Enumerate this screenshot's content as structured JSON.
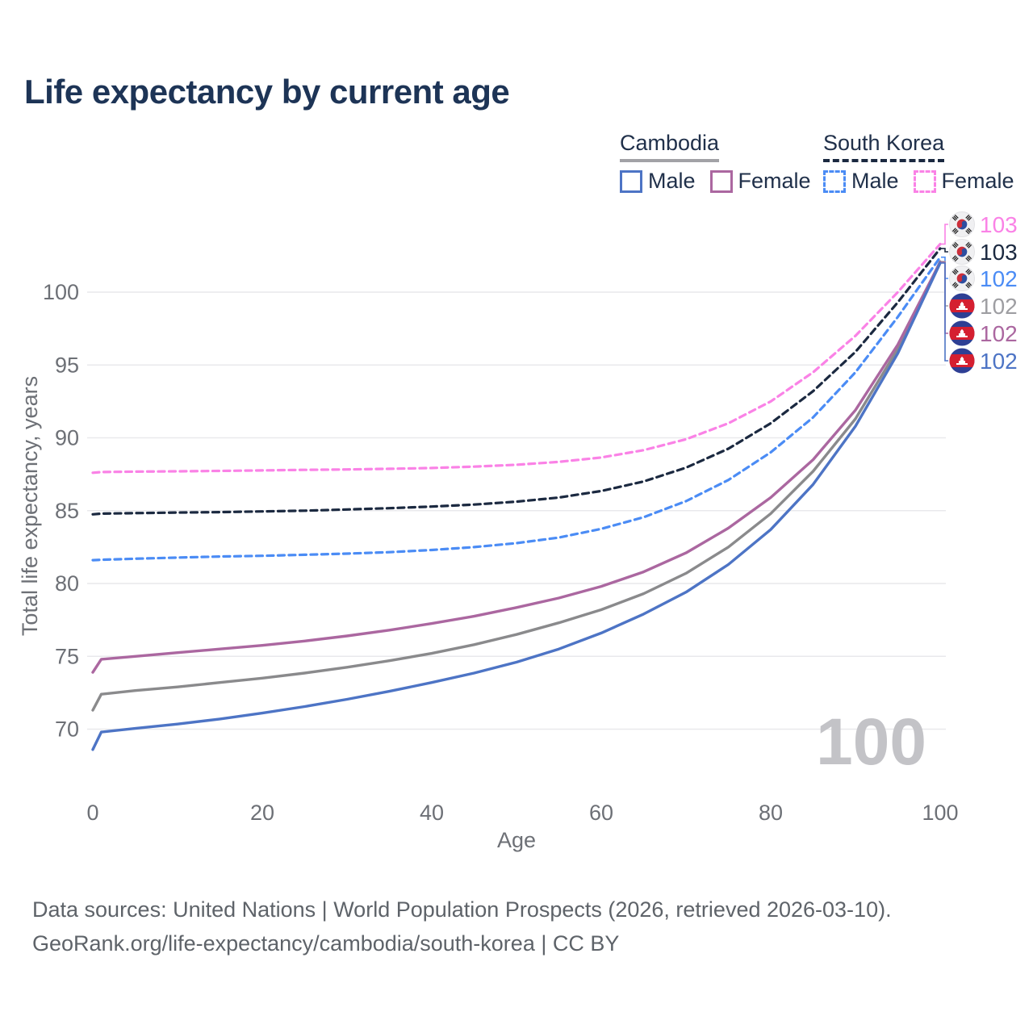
{
  "title": "Life expectancy by current age",
  "legend": {
    "groups": [
      {
        "label": "Cambodia",
        "underline_style": "solid",
        "underline_color": "#a2a2a6",
        "items": [
          {
            "label": "Male",
            "color": "#4d74c5",
            "dashed": false
          },
          {
            "label": "Female",
            "color": "#ab67a0",
            "dashed": false
          }
        ]
      },
      {
        "label": "South Korea",
        "underline_style": "dashed",
        "underline_color": "#1b2940",
        "items": [
          {
            "label": "Male",
            "color": "#4b8cf5",
            "dashed": true
          },
          {
            "label": "Female",
            "color": "#fa82e6",
            "dashed": true
          }
        ]
      }
    ]
  },
  "watermark_age": "100",
  "footer": {
    "line1": "Data sources: United Nations | World Population Prospects (2026, retrieved 2026-03-10).",
    "line2": "GeoRank.org/life-expectancy/cambodia/south-korea | CC BY"
  },
  "chart_data": {
    "type": "line",
    "title": "Life expectancy by current age",
    "xlabel": "Age",
    "ylabel": "Total life expectancy, years",
    "xlim": [
      0,
      100
    ],
    "ylim": [
      68,
      104
    ],
    "x_ticks": [
      0,
      20,
      40,
      60,
      80,
      100
    ],
    "y_ticks": [
      70,
      75,
      80,
      85,
      90,
      95,
      100
    ],
    "grid": "horizontal",
    "x": [
      0,
      1,
      5,
      10,
      15,
      20,
      25,
      30,
      35,
      40,
      45,
      50,
      55,
      60,
      65,
      70,
      75,
      80,
      85,
      90,
      95,
      100
    ],
    "series": [
      {
        "name": "South Korea Female",
        "country": "South Korea",
        "sex": "Female",
        "flag": "kr",
        "color": "#fa82e6",
        "label_color": "#fa82e6",
        "dash": true,
        "end_label": "103",
        "values": [
          87.6,
          87.65,
          87.68,
          87.7,
          87.73,
          87.76,
          87.8,
          87.83,
          87.87,
          87.93,
          88.02,
          88.15,
          88.35,
          88.65,
          89.15,
          89.9,
          91.0,
          92.5,
          94.5,
          97.0,
          100.0,
          103.3
        ]
      },
      {
        "name": "South Korea Total",
        "country": "South Korea",
        "sex": "Both",
        "flag": "kr",
        "color": "#1b2940",
        "label_color": "#1b2940",
        "dash": true,
        "end_label": "103",
        "values": [
          84.75,
          84.8,
          84.83,
          84.87,
          84.9,
          84.95,
          85.0,
          85.08,
          85.17,
          85.28,
          85.42,
          85.62,
          85.9,
          86.35,
          87.0,
          87.95,
          89.25,
          91.0,
          93.2,
          95.9,
          99.3,
          103.0
        ]
      },
      {
        "name": "South Korea Male",
        "country": "South Korea",
        "sex": "Male",
        "flag": "kr",
        "color": "#4b8cf5",
        "label_color": "#4b8cf5",
        "dash": true,
        "end_label": "102",
        "values": [
          81.6,
          81.63,
          81.7,
          81.78,
          81.85,
          81.9,
          81.97,
          82.05,
          82.15,
          82.3,
          82.5,
          82.77,
          83.15,
          83.75,
          84.55,
          85.65,
          87.1,
          89.0,
          91.4,
          94.5,
          98.3,
          102.4
        ]
      },
      {
        "name": "Cambodia Total",
        "country": "Cambodia",
        "sex": "Both",
        "flag": "kh",
        "color": "#8a8a8c",
        "label_color": "#9e9ea2",
        "dash": false,
        "end_label": "102",
        "values": [
          71.3,
          72.4,
          72.65,
          72.9,
          73.2,
          73.5,
          73.85,
          74.25,
          74.7,
          75.2,
          75.8,
          76.5,
          77.3,
          78.2,
          79.3,
          80.7,
          82.5,
          84.8,
          87.7,
          91.3,
          96.1,
          102.1
        ]
      },
      {
        "name": "Cambodia Female",
        "country": "Cambodia",
        "sex": "Female",
        "flag": "kh",
        "color": "#ab67a0",
        "label_color": "#ab67a0",
        "dash": false,
        "end_label": "102",
        "values": [
          73.9,
          74.8,
          75.0,
          75.25,
          75.5,
          75.75,
          76.05,
          76.4,
          76.8,
          77.25,
          77.75,
          78.35,
          79.0,
          79.8,
          80.8,
          82.1,
          83.8,
          85.9,
          88.5,
          91.9,
          96.4,
          102.05
        ]
      },
      {
        "name": "Cambodia Male",
        "country": "Cambodia",
        "sex": "Male",
        "flag": "kh",
        "color": "#4d74c5",
        "label_color": "#4d74c5",
        "dash": false,
        "end_label": "102",
        "values": [
          68.6,
          69.8,
          70.05,
          70.35,
          70.7,
          71.1,
          71.55,
          72.05,
          72.6,
          73.2,
          73.85,
          74.6,
          75.5,
          76.6,
          77.9,
          79.4,
          81.3,
          83.7,
          86.8,
          90.8,
          95.8,
          102.0
        ]
      }
    ],
    "legend_position": "top-right",
    "colors": {
      "grid": "#e9e9ec",
      "axis_text": "#6d7076",
      "watermark": "#c3c3c7",
      "title_text": "#1d3456"
    }
  }
}
